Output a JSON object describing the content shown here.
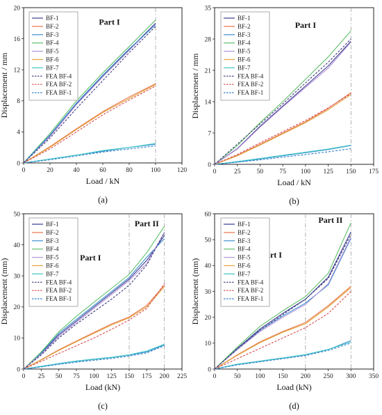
{
  "legend": [
    {
      "label": "BF-1",
      "color": "#3b3b8e",
      "dash": false
    },
    {
      "label": "BF-2",
      "color": "#e8754a",
      "dash": false
    },
    {
      "label": "BF-3",
      "color": "#3a8fd0",
      "dash": false
    },
    {
      "label": "BF-4",
      "color": "#5fbf6a",
      "dash": false
    },
    {
      "label": "BF-5",
      "color": "#b493d8",
      "dash": false
    },
    {
      "label": "BF-6",
      "color": "#e0a339",
      "dash": false
    },
    {
      "label": "BF-7",
      "color": "#3fc6c6",
      "dash": false
    },
    {
      "label": "FEA BF-4",
      "color": "#3a3a7a",
      "dash": true
    },
    {
      "label": "FEA BF-2",
      "color": "#d9484f",
      "dash": true
    },
    {
      "label": "FEA BF-1",
      "color": "#2e7fc7",
      "dash": true
    }
  ],
  "chart_data": [
    {
      "panel": "(a)",
      "type": "line",
      "xlabel": "Load / kN",
      "ylabel": "Displacement / mm",
      "xlim": [
        0,
        120
      ],
      "ylim": [
        0,
        20
      ],
      "xticks": [
        "0",
        "20",
        "40",
        "60",
        "80",
        "100",
        "120"
      ],
      "yticks": [
        "0",
        "4",
        "8",
        "12",
        "16",
        "20"
      ],
      "vlines": [
        100
      ],
      "annotations": [
        {
          "text": "Part I",
          "x": 65,
          "y": 17.8
        }
      ],
      "groups": {
        "top": {
          "x": [
            0,
            20,
            40,
            60,
            80,
            100
          ],
          "series": [
            {
              "name": "BF-1",
              "values": [
                0,
                3.5,
                7.6,
                11.2,
                14.6,
                18.0
              ]
            },
            {
              "name": "BF-4",
              "values": [
                0,
                3.8,
                8.0,
                11.6,
                15.0,
                18.4
              ]
            },
            {
              "name": "BF-5",
              "values": [
                0,
                3.4,
                7.5,
                11.1,
                14.5,
                17.9
              ]
            },
            {
              "name": "BF-3",
              "values": [
                0,
                3.6,
                7.7,
                11.3,
                14.7,
                17.8
              ]
            },
            {
              "name": "FEA BF-4",
              "values": [
                0,
                3.2,
                7.0,
                10.6,
                14.2,
                17.6
              ]
            }
          ]
        },
        "mid": {
          "x": [
            0,
            20,
            40,
            60,
            80,
            100
          ],
          "series": [
            {
              "name": "BF-2",
              "values": [
                0,
                2.1,
                4.4,
                6.6,
                8.5,
                10.2
              ]
            },
            {
              "name": "BF-6",
              "values": [
                0,
                2.0,
                4.3,
                6.5,
                8.3,
                10.1
              ]
            },
            {
              "name": "FEA BF-2",
              "values": [
                0,
                1.8,
                4.0,
                6.2,
                8.1,
                9.9
              ]
            }
          ]
        },
        "bot": {
          "x": [
            0,
            20,
            40,
            60,
            80,
            100
          ],
          "series": [
            {
              "name": "BF-3",
              "values": [
                0,
                0.5,
                1.0,
                1.5,
                2.0,
                2.4
              ]
            },
            {
              "name": "BF-7",
              "values": [
                0,
                0.5,
                1.0,
                1.6,
                2.0,
                2.5
              ]
            },
            {
              "name": "FEA BF-1",
              "values": [
                0,
                0.4,
                0.9,
                1.4,
                1.8,
                2.2
              ]
            }
          ]
        }
      }
    },
    {
      "panel": "(b)",
      "type": "line",
      "xlabel": "Load / kN",
      "ylabel": "Displacement / mm",
      "xlim": [
        0,
        175
      ],
      "ylim": [
        0,
        35
      ],
      "xticks": [
        "0",
        "25",
        "50",
        "75",
        "100",
        "125",
        "150",
        "175"
      ],
      "yticks": [
        "0",
        "7",
        "14",
        "21",
        "28",
        "35"
      ],
      "vlines": [
        150
      ],
      "annotations": [
        {
          "text": "Part I",
          "x": 100,
          "y": 30.5
        }
      ],
      "groups": {
        "top": {
          "x": [
            0,
            25,
            50,
            75,
            100,
            125,
            150
          ],
          "series": [
            {
              "name": "BF-1",
              "values": [
                0,
                3.5,
                8.5,
                13.0,
                17.5,
                22.0,
                27.5
              ]
            },
            {
              "name": "BF-4",
              "values": [
                0,
                4.2,
                9.3,
                14.0,
                19.0,
                24.0,
                29.8
              ]
            },
            {
              "name": "BF-5",
              "values": [
                0,
                3.4,
                8.3,
                12.8,
                17.2,
                21.5,
                27.3
              ]
            },
            {
              "name": "FEA BF-4",
              "values": [
                0,
                4.5,
                9.0,
                13.5,
                18.2,
                22.8,
                28.0
              ]
            }
          ]
        },
        "mid": {
          "x": [
            0,
            25,
            50,
            75,
            100,
            125,
            150
          ],
          "series": [
            {
              "name": "BF-2",
              "values": [
                0,
                2.0,
                4.5,
                7.0,
                9.5,
                12.5,
                16.0
              ]
            },
            {
              "name": "BF-6",
              "values": [
                0,
                1.9,
                4.3,
                6.8,
                9.3,
                12.2,
                15.6
              ]
            },
            {
              "name": "FEA BF-2",
              "values": [
                0,
                2.2,
                4.8,
                7.3,
                9.8,
                12.6,
                15.8
              ]
            }
          ]
        },
        "bot": {
          "x": [
            0,
            25,
            50,
            75,
            100,
            125,
            150
          ],
          "series": [
            {
              "name": "BF-3",
              "values": [
                0,
                0.5,
                1.2,
                1.9,
                2.6,
                3.3,
                4.2
              ]
            },
            {
              "name": "BF-7",
              "values": [
                0,
                0.6,
                1.3,
                2.0,
                2.7,
                3.4,
                4.3
              ]
            },
            {
              "name": "FEA BF-1",
              "values": [
                0,
                0.5,
                1.0,
                1.6,
                2.2,
                2.8,
                3.5
              ]
            }
          ]
        }
      }
    },
    {
      "panel": "(c)",
      "type": "line",
      "xlabel": "Load (kN)",
      "ylabel": "Displacement (mm)",
      "xlim": [
        0,
        225
      ],
      "ylim": [
        0,
        50
      ],
      "xticks": [
        "0",
        "25",
        "50",
        "75",
        "100",
        "125",
        "150",
        "175",
        "200",
        "225"
      ],
      "yticks": [
        "0",
        "10",
        "20",
        "30",
        "40",
        "50"
      ],
      "vlines": [
        150,
        200
      ],
      "annotations": [
        {
          "text": "Part I",
          "x": 95,
          "y": 35
        },
        {
          "text": "Part II",
          "x": 175,
          "y": 46
        }
      ],
      "groups": {
        "top": {
          "x": [
            0,
            25,
            50,
            75,
            100,
            125,
            150,
            175,
            200
          ],
          "series": [
            {
              "name": "BF-1",
              "values": [
                0,
                5.0,
                11.0,
                15.5,
                20.0,
                24.5,
                29.0,
                35.0,
                43.0
              ]
            },
            {
              "name": "BF-3",
              "values": [
                0,
                5.2,
                11.5,
                16.0,
                20.5,
                25.0,
                29.5,
                36.0,
                42.0
              ]
            },
            {
              "name": "BF-4",
              "values": [
                0,
                5.5,
                12.0,
                17.0,
                21.5,
                26.0,
                30.5,
                37.5,
                46.0
              ]
            },
            {
              "name": "BF-5",
              "values": [
                0,
                4.8,
                10.5,
                15.0,
                19.5,
                24.0,
                28.5,
                34.0,
                44.0
              ]
            },
            {
              "name": "FEA BF-4",
              "values": [
                0,
                4.5,
                10.0,
                14.5,
                18.5,
                22.5,
                27.0,
                33.5,
                44.0
              ]
            }
          ]
        },
        "mid": {
          "x": [
            0,
            25,
            50,
            75,
            100,
            125,
            150,
            175,
            200
          ],
          "series": [
            {
              "name": "BF-2",
              "values": [
                0,
                3.0,
                6.2,
                9.0,
                11.8,
                14.5,
                16.8,
                20.5,
                27.0
              ]
            },
            {
              "name": "BF-6",
              "values": [
                0,
                2.9,
                6.0,
                8.8,
                11.5,
                14.2,
                16.5,
                20.0,
                26.5
              ]
            },
            {
              "name": "FEA BF-2",
              "values": [
                0,
                2.5,
                5.0,
                7.5,
                10.0,
                12.8,
                15.8,
                19.5,
                27.5
              ]
            }
          ]
        },
        "bot": {
          "x": [
            0,
            25,
            50,
            75,
            100,
            125,
            150,
            175,
            200
          ],
          "series": [
            {
              "name": "BF-3",
              "values": [
                0,
                0.8,
                1.7,
                2.5,
                3.1,
                3.7,
                4.5,
                5.5,
                7.8
              ]
            },
            {
              "name": "BF-7",
              "values": [
                0,
                0.9,
                1.8,
                2.6,
                3.2,
                3.8,
                4.6,
                5.8,
                8.0
              ]
            },
            {
              "name": "FEA BF-1",
              "values": [
                0,
                0.7,
                1.5,
                2.2,
                2.8,
                3.4,
                4.2,
                5.2,
                7.5
              ]
            }
          ]
        }
      }
    },
    {
      "panel": "(d)",
      "type": "line",
      "xlabel": "Load (kN)",
      "ylabel": "Displacement (mm)",
      "xlim": [
        0,
        350
      ],
      "ylim": [
        0,
        60
      ],
      "xticks": [
        "0",
        "50",
        "100",
        "150",
        "200",
        "250",
        "300",
        "350"
      ],
      "yticks": [
        "0",
        "10",
        "20",
        "30",
        "40",
        "50",
        "60"
      ],
      "vlines": [
        200,
        300
      ],
      "annotations": [
        {
          "text": "Part I",
          "x": 125,
          "y": 43
        },
        {
          "text": "Part II",
          "x": 255,
          "y": 56.5
        }
      ],
      "groups": {
        "top": {
          "x": [
            0,
            50,
            100,
            150,
            200,
            250,
            300
          ],
          "series": [
            {
              "name": "BF-1",
              "values": [
                0,
                8.0,
                15.5,
                21.5,
                27.0,
                35.5,
                53.0
              ]
            },
            {
              "name": "BF-3",
              "values": [
                0,
                7.8,
                15.0,
                20.5,
                25.5,
                32.5,
                50.5
              ]
            },
            {
              "name": "BF-4",
              "values": [
                0,
                8.5,
                16.5,
                22.5,
                28.0,
                37.0,
                56.5
              ]
            },
            {
              "name": "BF-5",
              "values": [
                0,
                7.5,
                14.5,
                20.0,
                25.0,
                33.0,
                51.0
              ]
            },
            {
              "name": "FEA BF-4",
              "values": [
                0,
                7.8,
                15.0,
                21.0,
                27.0,
                35.0,
                52.0
              ]
            }
          ]
        },
        "mid": {
          "x": [
            0,
            50,
            100,
            150,
            200,
            250,
            300
          ],
          "series": [
            {
              "name": "BF-2",
              "values": [
                0,
                5.5,
                10.5,
                14.5,
                18.0,
                24.5,
                32.0
              ]
            },
            {
              "name": "BF-6",
              "values": [
                0,
                5.3,
                10.2,
                14.2,
                17.5,
                24.0,
                31.5
              ]
            },
            {
              "name": "FEA BF-2",
              "values": [
                0,
                4.0,
                8.0,
                12.0,
                16.0,
                21.5,
                30.0
              ]
            }
          ]
        },
        "bot": {
          "x": [
            0,
            50,
            100,
            150,
            200,
            250,
            300
          ],
          "series": [
            {
              "name": "BF-3",
              "values": [
                0,
                1.8,
                3.0,
                4.2,
                5.5,
                7.5,
                11.0
              ]
            },
            {
              "name": "BF-7",
              "values": [
                0,
                1.9,
                3.1,
                4.3,
                5.6,
                7.6,
                10.5
              ]
            },
            {
              "name": "FEA BF-1",
              "values": [
                0,
                1.6,
                2.8,
                4.0,
                5.2,
                7.2,
                10.0
              ]
            }
          ]
        }
      }
    }
  ]
}
